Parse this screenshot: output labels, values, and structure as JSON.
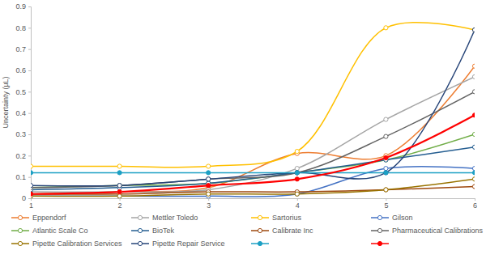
{
  "chart_data": {
    "type": "line",
    "y_label": "Uncertainty (µL)",
    "x": [
      1,
      2,
      3,
      4,
      5,
      6
    ],
    "xlim": [
      1,
      6
    ],
    "xticks": [
      1,
      2,
      3,
      4,
      5,
      6
    ],
    "ylim": [
      0,
      0.9
    ],
    "yticks": [
      0,
      0.1,
      0.2,
      0.3,
      0.4,
      0.5,
      0.6,
      0.7,
      0.8,
      0.9
    ],
    "grid": false,
    "legend": "bottom",
    "line_style": "smooth",
    "series": [
      {
        "name": "Eppendorf",
        "color": "#ed7d31",
        "marker": "circle-open",
        "values": [
          0.02,
          0.03,
          0.05,
          0.21,
          0.2,
          0.62
        ]
      },
      {
        "name": "Mettler Toledo",
        "color": "#a5a5a5",
        "marker": "circle-open",
        "values": [
          0.03,
          0.03,
          0.04,
          0.14,
          0.37,
          0.57
        ]
      },
      {
        "name": "Sartorius",
        "color": "#ffc000",
        "marker": "circle-open",
        "values": [
          0.15,
          0.15,
          0.15,
          0.22,
          0.8,
          0.79
        ]
      },
      {
        "name": "Gilson",
        "color": "#4472c4",
        "marker": "circle-open",
        "values": [
          0.01,
          0.01,
          0.01,
          0.02,
          0.14,
          0.14
        ]
      },
      {
        "name": "Atlantic Scale Co",
        "color": "#70ad47",
        "marker": "circle-open",
        "values": [
          0.05,
          0.06,
          0.07,
          0.12,
          0.18,
          0.3
        ]
      },
      {
        "name": "BioTek",
        "color": "#255e91",
        "marker": "circle-open",
        "values": [
          0.04,
          0.05,
          0.07,
          0.12,
          0.18,
          0.24
        ]
      },
      {
        "name": "Calibrate Inc",
        "color": "#9e480e",
        "marker": "circle-open",
        "values": [
          0.02,
          0.02,
          0.03,
          0.03,
          0.04,
          0.055
        ]
      },
      {
        "name": "Pharmaceutical Calibrations",
        "color": "#636363",
        "marker": "circle-open",
        "values": [
          0.05,
          0.06,
          0.09,
          0.12,
          0.29,
          0.5
        ]
      },
      {
        "name": "Pipette Calibration Services",
        "color": "#997300",
        "marker": "circle-open",
        "values": [
          0.01,
          0.01,
          0.02,
          0.02,
          0.04,
          0.09
        ]
      },
      {
        "name": "Pipette Repair Service",
        "color": "#264478",
        "marker": "circle-open",
        "values": [
          0.06,
          0.06,
          0.09,
          0.12,
          0.12,
          0.79
        ]
      },
      {
        "name": null,
        "color": "#1ca0c4",
        "marker": "circle",
        "values": [
          0.12,
          0.12,
          0.12,
          0.12,
          0.12,
          0.12
        ]
      },
      {
        "name": null,
        "color": "#ff0000",
        "marker": "circle",
        "values": [
          0.02,
          0.03,
          0.06,
          0.09,
          0.19,
          0.39
        ]
      }
    ]
  }
}
